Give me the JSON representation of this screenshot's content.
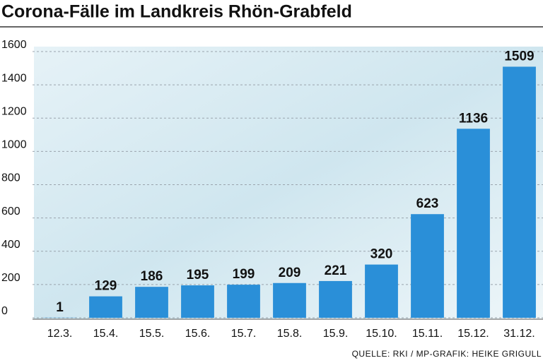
{
  "chart_data": {
    "type": "bar",
    "title": "Corona-Fälle im Landkreis Rhön-Grabfeld",
    "source": "QUELLE: RKI / MP-GRAFIK: HEIKE GRIGULL",
    "categories": [
      "12.3.",
      "15.4.",
      "15.5.",
      "15.6.",
      "15.7.",
      "15.8.",
      "15.9.",
      "15.10.",
      "15.11.",
      "15.12.",
      "31.12."
    ],
    "values": [
      1,
      129,
      186,
      195,
      199,
      209,
      221,
      320,
      623,
      1136,
      1509
    ],
    "color": "#2a8fd8",
    "ylim": [
      0,
      1600
    ],
    "yticks": [
      0,
      200,
      400,
      600,
      800,
      1000,
      1200,
      1400,
      1600
    ],
    "grid": true
  }
}
